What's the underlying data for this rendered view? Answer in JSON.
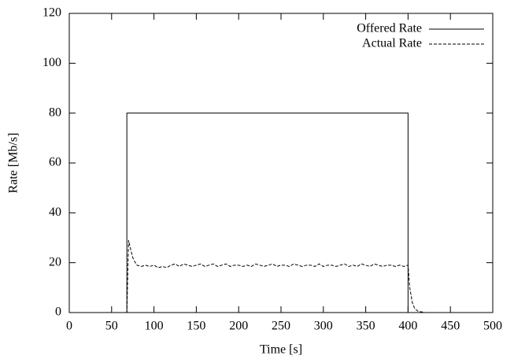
{
  "chart_data": {
    "type": "line",
    "xlabel": "Time [s]",
    "ylabel": "Rate [Mb/s]",
    "xlim": [
      0,
      500
    ],
    "ylim": [
      0,
      120
    ],
    "xticks": [
      0,
      50,
      100,
      150,
      200,
      250,
      300,
      350,
      400,
      450,
      500
    ],
    "yticks": [
      0,
      20,
      40,
      60,
      80,
      100,
      120
    ],
    "legend": "top-right",
    "series": [
      {
        "name": "Offered Rate",
        "color": "#000000",
        "dash": "solid",
        "x": [
          0,
          68,
          68,
          400,
          400,
          480
        ],
        "values": [
          0,
          0,
          80,
          80,
          0,
          0
        ]
      },
      {
        "name": "Actual Rate",
        "color": "#000000",
        "dash": "dashed",
        "x": [
          0,
          67,
          68,
          70,
          72,
          75,
          78,
          80,
          85,
          90,
          95,
          100,
          105,
          110,
          115,
          120,
          125,
          130,
          135,
          140,
          145,
          150,
          155,
          160,
          165,
          170,
          175,
          180,
          185,
          190,
          195,
          200,
          205,
          210,
          215,
          220,
          225,
          230,
          235,
          240,
          245,
          250,
          255,
          260,
          265,
          270,
          275,
          280,
          285,
          290,
          295,
          300,
          305,
          310,
          315,
          320,
          325,
          330,
          335,
          340,
          345,
          350,
          355,
          360,
          365,
          370,
          375,
          380,
          385,
          390,
          395,
          400,
          402,
          405,
          408,
          412,
          420,
          480
        ],
        "values": [
          0,
          0,
          0,
          29,
          26,
          22,
          20,
          19,
          18.5,
          19,
          18.5,
          19,
          18,
          18.5,
          18,
          19,
          19.5,
          18.5,
          19.5,
          19,
          18.5,
          19,
          19.5,
          18.5,
          19,
          19.5,
          18.5,
          19,
          19.5,
          18.5,
          19,
          19,
          18.5,
          19,
          18.5,
          19.5,
          19,
          18.5,
          19,
          19.5,
          18.5,
          19,
          19,
          18.5,
          19.5,
          19,
          18.5,
          19,
          19,
          18.5,
          19.5,
          18.5,
          19,
          19,
          18.5,
          19,
          19.5,
          18.5,
          19,
          18.5,
          19.5,
          19,
          18.5,
          19.5,
          19,
          18.5,
          19,
          19,
          18.5,
          19,
          18.5,
          19,
          10,
          4,
          1.5,
          0.5,
          0,
          0
        ]
      }
    ]
  }
}
